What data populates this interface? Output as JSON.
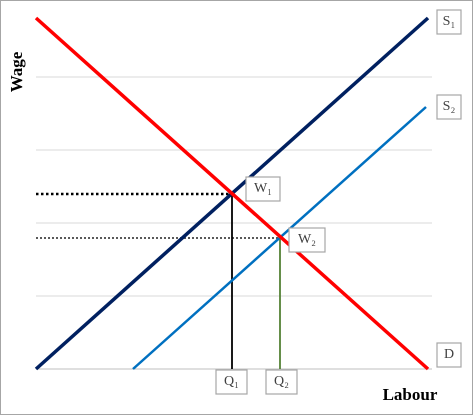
{
  "axes": {
    "y_label": "Wage",
    "x_label": "Labour"
  },
  "curves": {
    "supply_1": "S₁",
    "supply_2": "S₂",
    "demand": "D"
  },
  "equilibria": {
    "wage_1": "W₁",
    "wage_2": "W₂",
    "quantity_1": "Q₁",
    "quantity_2": "Q₂"
  }
}
